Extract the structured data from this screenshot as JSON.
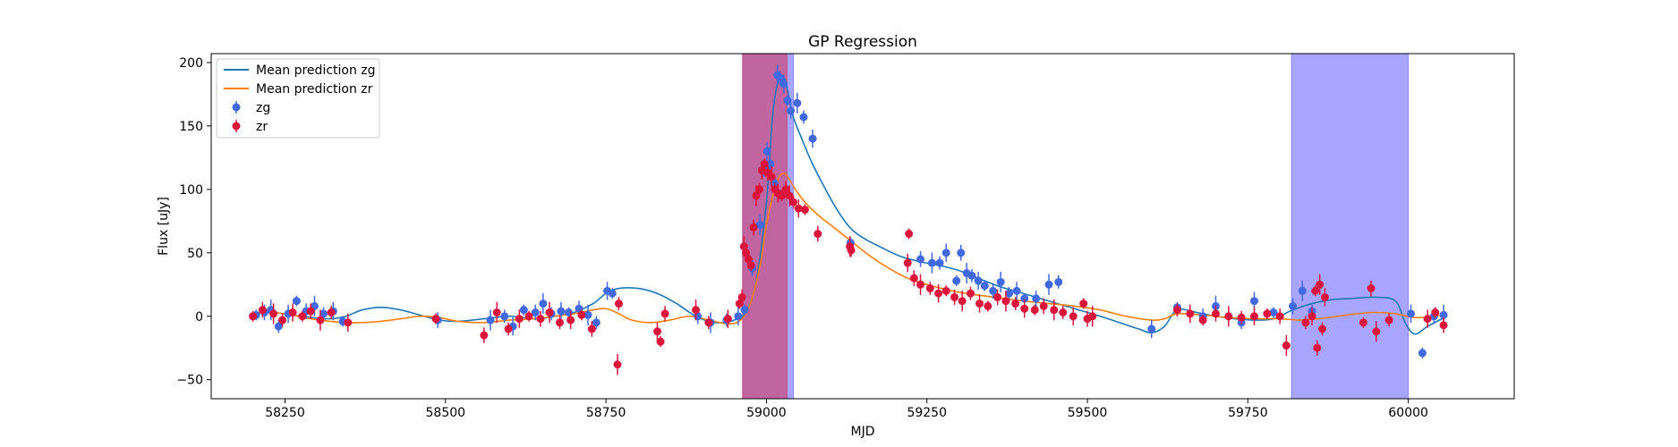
{
  "chart_data": {
    "type": "scatter",
    "title": "GP Regression",
    "xlabel": "MJD",
    "ylabel": "Flux [uJy]",
    "xlim": [
      58135,
      60165
    ],
    "ylim": [
      -65,
      207
    ],
    "xticks": [
      58250,
      58500,
      58750,
      59000,
      59250,
      59500,
      59750,
      60000
    ],
    "yticks": [
      -50,
      0,
      50,
      100,
      150,
      200
    ],
    "grid": false,
    "legend_position": "top-left",
    "legend": [
      "Mean prediction zg",
      "Mean prediction zr",
      "zg",
      "zr"
    ],
    "shaded_regions": [
      {
        "x0": 58963,
        "x1": 59042,
        "color": "#8b87ff"
      },
      {
        "x0": 58963,
        "x1": 59032,
        "color": "#c8507f"
      },
      {
        "x0": 59818,
        "x1": 60000,
        "color": "#8b87ff"
      }
    ],
    "series": [
      {
        "name": "Mean prediction zg",
        "kind": "line",
        "color": "#1f77b4",
        "x": [
          58200,
          58230,
          58260,
          58290,
          58320,
          58345,
          58370,
          58400,
          58430,
          58460,
          58490,
          58520,
          58560,
          58600,
          58640,
          58670,
          58700,
          58730,
          58750,
          58770,
          58800,
          58830,
          58860,
          58890,
          58920,
          58950,
          58970,
          58985,
          59000,
          59010,
          59020,
          59030,
          59040,
          59055,
          59070,
          59090,
          59110,
          59130,
          59150,
          59180,
          59210,
          59240,
          59270,
          59300,
          59330,
          59360,
          59400,
          59440,
          59480,
          59520,
          59550,
          59580,
          59600,
          59620,
          59640,
          59670,
          59700,
          59730,
          59760,
          59790,
          59820,
          59850,
          59880,
          59910,
          59950,
          59980,
          59995,
          60010,
          60030,
          60060
        ],
        "y": [
          2,
          3,
          1,
          -1,
          -2,
          0,
          5,
          7,
          5,
          1,
          -3,
          -4,
          -2,
          0,
          -2,
          0,
          3,
          10,
          18,
          22,
          22,
          18,
          10,
          0,
          -5,
          -3,
          5,
          30,
          90,
          160,
          188,
          185,
          160,
          140,
          122,
          102,
          84,
          70,
          62,
          54,
          47,
          43,
          40,
          36,
          30,
          24,
          18,
          12,
          6,
          0,
          -5,
          -10,
          -13,
          -8,
          5,
          3,
          0,
          -2,
          -3,
          -2,
          5,
          10,
          13,
          14,
          15,
          12,
          -5,
          -14,
          -8,
          0
        ]
      },
      {
        "name": "Mean prediction zr",
        "kind": "line",
        "color": "#ff7f0e",
        "x": [
          58200,
          58230,
          58260,
          58290,
          58320,
          58345,
          58370,
          58400,
          58430,
          58460,
          58490,
          58520,
          58560,
          58600,
          58640,
          58670,
          58700,
          58730,
          58750,
          58770,
          58790,
          58820,
          58850,
          58880,
          58910,
          58940,
          58960,
          58975,
          58990,
          59000,
          59010,
          59020,
          59030,
          59045,
          59060,
          59080,
          59100,
          59130,
          59160,
          59190,
          59220,
          59250,
          59280,
          59310,
          59340,
          59370,
          59400,
          59440,
          59480,
          59520,
          59560,
          59600,
          59620,
          59640,
          59680,
          59720,
          59760,
          59800,
          59830,
          59860,
          59890,
          59920,
          59950,
          59980,
          60010,
          60040,
          60060
        ],
        "y": [
          2,
          3,
          1,
          -2,
          -4,
          -5,
          -5,
          -4,
          -2,
          0,
          -1,
          -4,
          -5,
          -3,
          -2,
          0,
          2,
          5,
          6,
          2,
          -3,
          -5,
          -3,
          0,
          -3,
          -6,
          -3,
          10,
          40,
          72,
          95,
          110,
          112,
          100,
          90,
          80,
          72,
          60,
          48,
          38,
          30,
          25,
          21,
          18,
          16,
          14,
          12,
          10,
          8,
          5,
          0,
          -3,
          -2,
          2,
          1,
          -1,
          -2,
          -2,
          -3,
          -2,
          0,
          2,
          3,
          2,
          -1,
          0,
          2
        ]
      },
      {
        "name": "zg",
        "kind": "points",
        "color": "#4169e1",
        "x": [
          58205,
          58218,
          58228,
          58240,
          58255,
          58268,
          58283,
          58296,
          58310,
          58325,
          58340,
          58488,
          58570,
          58592,
          58605,
          58622,
          58640,
          58652,
          58665,
          58680,
          58692,
          58708,
          58722,
          58735,
          58752,
          58760,
          58893,
          58913,
          58938,
          58956,
          58966,
          58978,
          58990,
          58996,
          59001,
          59006,
          59012,
          59017,
          59021,
          59027,
          59033,
          59038,
          59048,
          59058,
          59072,
          59131,
          59240,
          59258,
          59270,
          59280,
          59296,
          59303,
          59312,
          59320,
          59330,
          59340,
          59353,
          59365,
          59378,
          59390,
          59402,
          59420,
          59440,
          59455,
          59600,
          59640,
          59680,
          59700,
          59740,
          59760,
          59790,
          59820,
          59835,
          59850,
          60004,
          60022,
          60040,
          60055
        ],
        "y": [
          1,
          3,
          5,
          -8,
          2,
          12,
          4,
          8,
          2,
          4,
          -4,
          -3,
          -3,
          0,
          -8,
          5,
          3,
          10,
          2,
          4,
          3,
          6,
          1,
          -5,
          20,
          18,
          0,
          -5,
          -3,
          0,
          5,
          38,
          72,
          115,
          130,
          120,
          105,
          190,
          188,
          183,
          170,
          162,
          168,
          157,
          140,
          58,
          45,
          42,
          42,
          50,
          28,
          50,
          34,
          32,
          28,
          24,
          20,
          27,
          18,
          20,
          14,
          14,
          25,
          27,
          -10,
          7,
          0,
          8,
          -5,
          12,
          3,
          8,
          20,
          4,
          2,
          -29,
          0,
          1
        ]
      },
      {
        "name": "zr",
        "kind": "points",
        "color": "#dc143c",
        "x": [
          58200,
          58215,
          58232,
          58246,
          58262,
          58277,
          58290,
          58305,
          58322,
          58348,
          58485,
          58560,
          58580,
          58598,
          58615,
          58630,
          58648,
          58662,
          58678,
          58695,
          58712,
          58728,
          58768,
          58770,
          58830,
          58835,
          58842,
          58890,
          58910,
          58940,
          58958,
          58962,
          58965,
          58968,
          58972,
          58976,
          58980,
          58984,
          58989,
          58993,
          58997,
          59002,
          59008,
          59013,
          59018,
          59024,
          59030,
          59036,
          59042,
          59050,
          59060,
          59080,
          59130,
          59132,
          59220,
          59222,
          59230,
          59240,
          59255,
          59268,
          59280,
          59293,
          59305,
          59318,
          59332,
          59345,
          59360,
          59373,
          59388,
          59402,
          59418,
          59432,
          59448,
          59462,
          59478,
          59494,
          59500,
          59508,
          59640,
          59660,
          59680,
          59700,
          59720,
          59740,
          59760,
          59780,
          59800,
          59810,
          59840,
          59850,
          59855,
          59858,
          59862,
          59866,
          59870,
          59930,
          59942,
          59950,
          59970,
          60030,
          60042,
          60055
        ],
        "y": [
          0,
          5,
          2,
          -3,
          3,
          0,
          4,
          -3,
          3,
          -5,
          -2,
          -15,
          3,
          -10,
          -2,
          0,
          -2,
          3,
          -5,
          -3,
          1,
          -10,
          -38,
          10,
          -12,
          -20,
          2,
          5,
          -5,
          -2,
          10,
          15,
          55,
          50,
          45,
          40,
          70,
          95,
          100,
          115,
          120,
          113,
          110,
          100,
          97,
          95,
          100,
          95,
          90,
          85,
          84,
          65,
          55,
          52,
          42,
          65,
          30,
          25,
          22,
          18,
          20,
          15,
          12,
          18,
          10,
          8,
          15,
          12,
          10,
          6,
          5,
          8,
          5,
          3,
          0,
          10,
          -2,
          0,
          5,
          2,
          -3,
          2,
          0,
          -1,
          0,
          2,
          0,
          -23,
          -5,
          0,
          20,
          -25,
          25,
          -10,
          15,
          -5,
          22,
          -12,
          -3,
          -2,
          3,
          -7
        ]
      }
    ]
  }
}
